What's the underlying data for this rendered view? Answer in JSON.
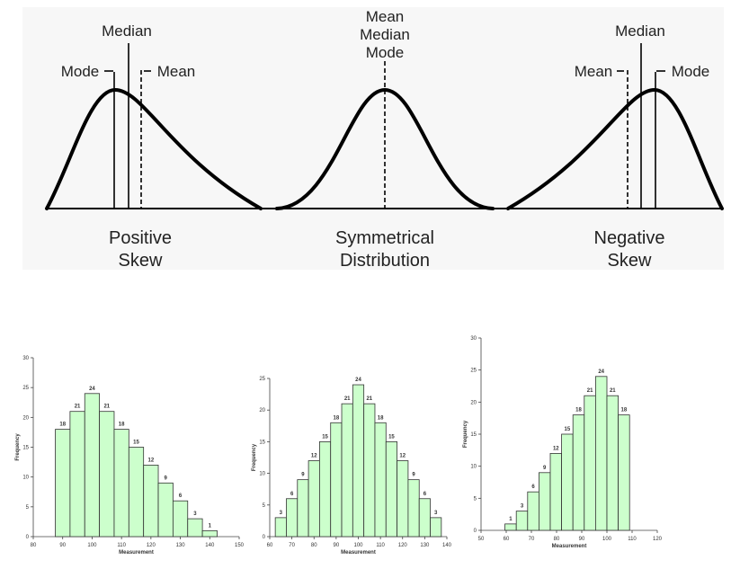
{
  "diagram": {
    "positive": {
      "median": "Median",
      "mode": "Mode",
      "mean": "Mean",
      "caption": [
        "Positive",
        "Skew"
      ]
    },
    "symmetrical": {
      "center": [
        "Mean",
        "Median",
        "Mode"
      ],
      "caption": [
        "Symmetrical",
        "Distribution"
      ]
    },
    "negative": {
      "median": "Median",
      "mean": "Mean",
      "mode": "Mode",
      "caption": [
        "Negative",
        "Skew"
      ]
    }
  },
  "chart_data": [
    {
      "type": "histogram",
      "x_label": "Measurement",
      "y_label": "Frequency",
      "bins": [
        87.5,
        92.5,
        97.5,
        102.5,
        107.5,
        112.5,
        117.5,
        122.5,
        127.5,
        132.5,
        137.5,
        142.5
      ],
      "values": [
        18,
        21,
        24,
        21,
        18,
        15,
        12,
        9,
        6,
        3,
        1
      ],
      "color": "#ccffcc",
      "xlim": [
        80,
        150
      ],
      "xticks": [
        80,
        90,
        100,
        110,
        120,
        130,
        140,
        150
      ],
      "ylim": [
        0,
        30
      ],
      "yticks": [
        0,
        5,
        10,
        15,
        20,
        25,
        30
      ]
    },
    {
      "type": "histogram",
      "x_label": "Measurement",
      "y_label": "Frequency",
      "bins": [
        62.5,
        67.5,
        72.5,
        77.5,
        82.5,
        87.5,
        92.5,
        97.5,
        102.5,
        107.5,
        112.5,
        117.5,
        122.5,
        127.5,
        132.5,
        137.5
      ],
      "values": [
        3,
        6,
        9,
        12,
        15,
        18,
        21,
        24,
        21,
        18,
        15,
        12,
        9,
        6,
        3
      ],
      "color": "#ccffcc",
      "xlim": [
        60,
        140
      ],
      "xticks": [
        60,
        70,
        80,
        90,
        100,
        110,
        120,
        130,
        140
      ],
      "ylim": [
        0,
        25
      ],
      "yticks": [
        0,
        5,
        10,
        15,
        20,
        25
      ]
    },
    {
      "type": "histogram",
      "x_label": "Measurement",
      "y_label": "Frequency",
      "bins": [
        59.5,
        64,
        68.5,
        73,
        77.5,
        82,
        86.5,
        91,
        95.5,
        100,
        104.5,
        109
      ],
      "values": [
        1,
        3,
        6,
        9,
        12,
        15,
        18,
        21,
        24,
        21,
        18
      ],
      "color": "#ccffcc",
      "xlim": [
        50,
        120
      ],
      "xticks": [
        50,
        60,
        70,
        80,
        90,
        100,
        110,
        120
      ],
      "ylim": [
        0,
        30
      ],
      "yticks": [
        0,
        5,
        10,
        15,
        20,
        25,
        30
      ]
    }
  ]
}
